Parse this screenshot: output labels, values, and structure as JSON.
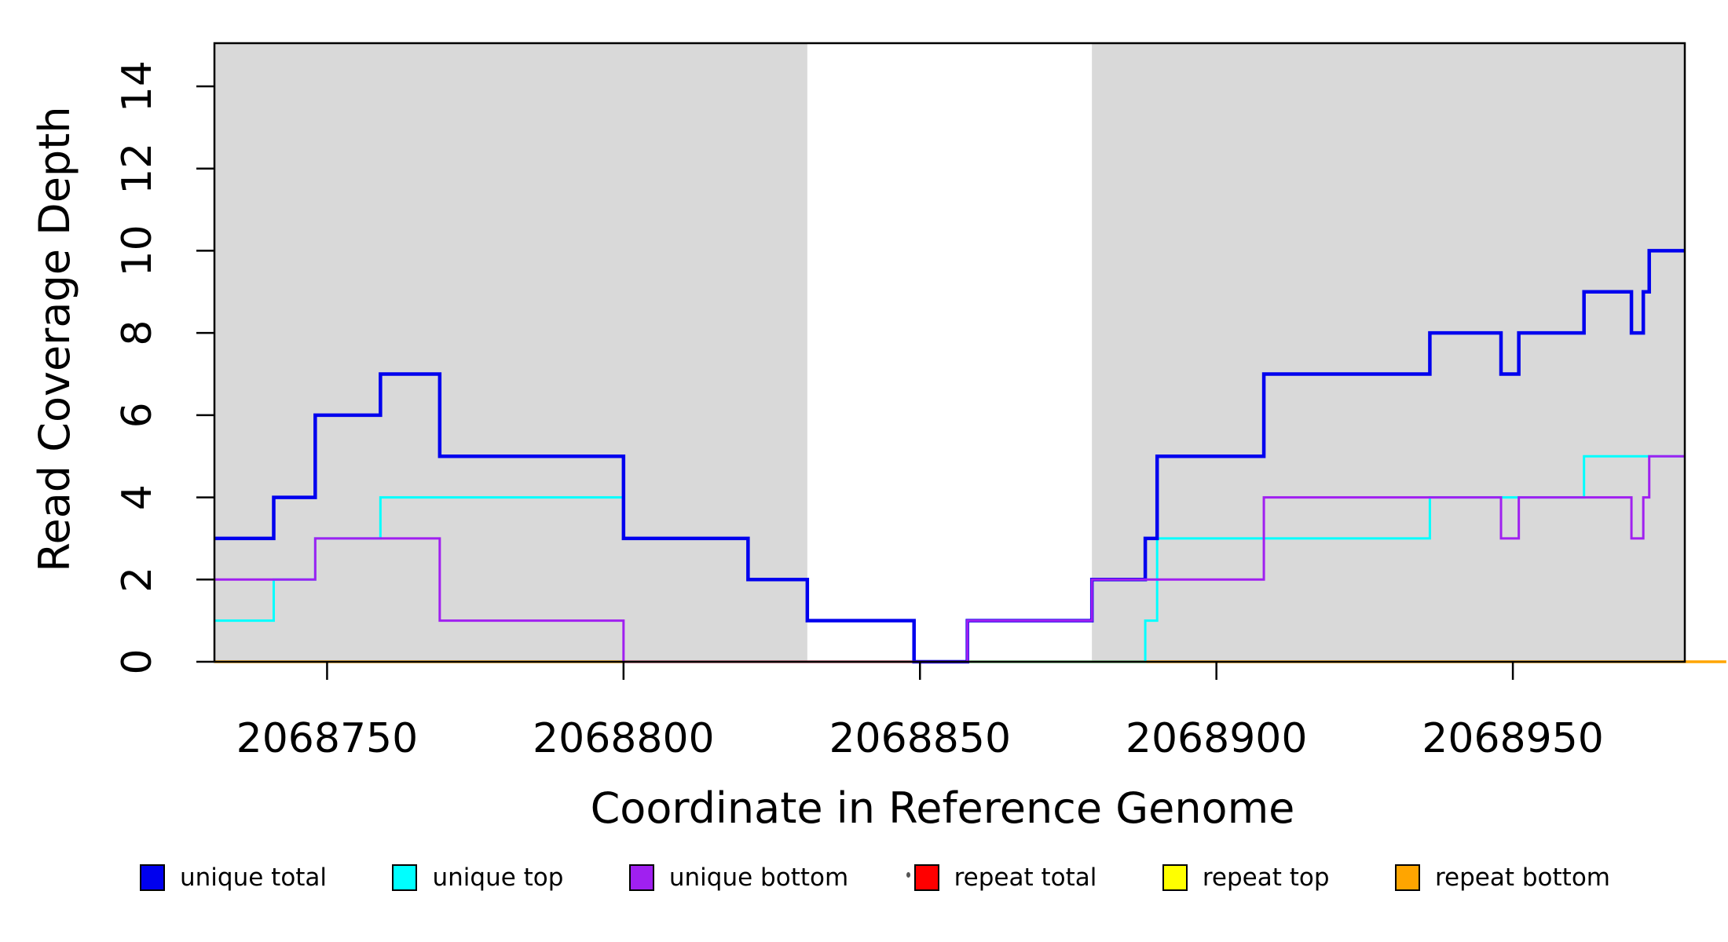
{
  "chart_data": {
    "type": "step",
    "xlabel": "Coordinate in Reference Genome",
    "ylabel": "Read Coverage Depth",
    "xlim": [
      2068731,
      2068979
    ],
    "ylim": [
      0,
      15.05
    ],
    "x_ticks": [
      2068750,
      2068800,
      2068850,
      2068900,
      2068950
    ],
    "y_ticks": [
      0,
      2,
      4,
      6,
      8,
      10,
      12,
      14
    ],
    "background_color": "#ffffff",
    "frame_color": "#000000",
    "shaded_region_color": "#d9d9d9",
    "shaded_regions": [
      {
        "x0": 2068731,
        "x1": 2068831
      },
      {
        "x0": 2068879,
        "x1": 2068979
      }
    ],
    "series": [
      {
        "name": "unique total",
        "color": "#0000ee",
        "width": 4.5,
        "steps": [
          [
            2068731,
            3
          ],
          [
            2068741,
            4
          ],
          [
            2068748,
            6
          ],
          [
            2068759,
            7
          ],
          [
            2068769,
            5
          ],
          [
            2068800,
            3
          ],
          [
            2068821,
            2
          ],
          [
            2068831,
            1
          ],
          [
            2068849,
            0
          ],
          [
            2068858,
            1
          ],
          [
            2068879,
            2
          ],
          [
            2068888,
            3
          ],
          [
            2068890,
            5
          ],
          [
            2068908,
            7
          ],
          [
            2068936,
            8
          ],
          [
            2068948,
            7
          ],
          [
            2068951,
            8
          ],
          [
            2068962,
            9
          ],
          [
            2068970,
            8
          ],
          [
            2068972,
            9
          ],
          [
            2068973,
            10
          ]
        ],
        "xend": 2068979
      },
      {
        "name": "unique top",
        "color": "#00ffff",
        "width": 3,
        "steps": [
          [
            2068731,
            1
          ],
          [
            2068741,
            2
          ],
          [
            2068748,
            3
          ],
          [
            2068759,
            4
          ],
          [
            2068800,
            3
          ],
          [
            2068821,
            2
          ],
          [
            2068831,
            1
          ],
          [
            2068849,
            0
          ],
          [
            2068888,
            1
          ],
          [
            2068890,
            3
          ],
          [
            2068936,
            4
          ],
          [
            2068962,
            5
          ]
        ],
        "xend": 2068979
      },
      {
        "name": "unique bottom",
        "color": "#a020f0",
        "width": 3,
        "steps": [
          [
            2068731,
            2
          ],
          [
            2068748,
            3
          ],
          [
            2068769,
            1
          ],
          [
            2068800,
            0
          ],
          [
            2068858,
            1
          ],
          [
            2068879,
            2
          ],
          [
            2068908,
            4
          ],
          [
            2068948,
            3
          ],
          [
            2068951,
            4
          ],
          [
            2068970,
            3
          ],
          [
            2068972,
            4
          ],
          [
            2068973,
            5
          ]
        ],
        "xend": 2068979
      },
      {
        "name": "repeat total",
        "color": "#ff0000",
        "width": 3,
        "steps": [
          [
            2068731,
            0
          ]
        ],
        "xend": 2068979
      },
      {
        "name": "repeat top",
        "color": "#ffff00",
        "width": 3,
        "steps": [
          [
            2068731,
            0
          ]
        ],
        "xend": 2068979
      },
      {
        "name": "repeat bottom",
        "color": "#ffa500",
        "width": 3.5,
        "steps": [
          [
            2068731,
            0
          ]
        ],
        "xend": 2068986
      }
    ],
    "draw_order": [
      "repeat total",
      "repeat top",
      "repeat bottom",
      "unique top",
      "unique total",
      "unique bottom"
    ],
    "legend": {
      "items": [
        {
          "label": "unique total",
          "color": "#0000ee"
        },
        {
          "label": "unique top",
          "color": "#00ffff"
        },
        {
          "label": "unique bottom",
          "color": "#a020f0"
        },
        {
          "label": "repeat total",
          "color": "#ff0000"
        },
        {
          "label": "repeat top",
          "color": "#ffff00"
        },
        {
          "label": "repeat bottom",
          "color": "#ffa500"
        }
      ]
    }
  }
}
